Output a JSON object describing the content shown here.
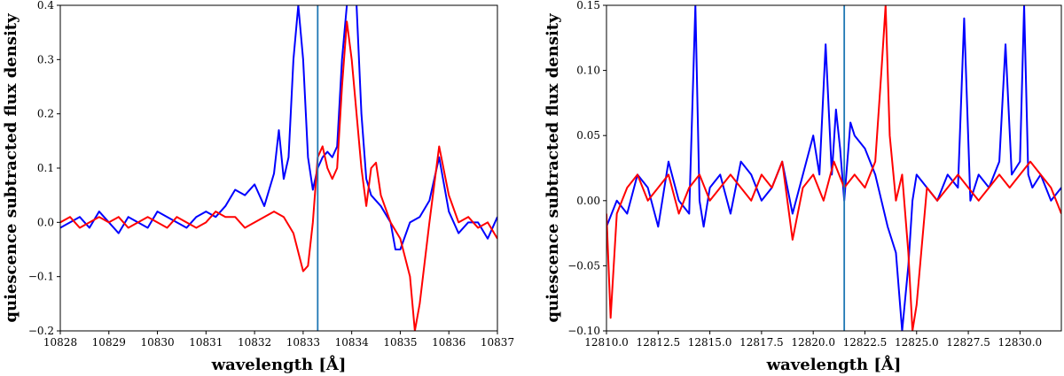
{
  "chart_data": [
    {
      "type": "line",
      "title": "",
      "xlabel": "wavelength [Å]",
      "ylabel": "quiescence subtracted flux density",
      "xlim": [
        10828,
        10837
      ],
      "ylim": [
        -0.2,
        0.4
      ],
      "xticks": [
        10828,
        10829,
        10830,
        10831,
        10832,
        10833,
        10834,
        10835,
        10836,
        10837
      ],
      "xtick_labels": [
        "10828",
        "10829",
        "10830",
        "10831",
        "10832",
        "10833",
        "10834",
        "10835",
        "10836",
        "10837"
      ],
      "yticks": [
        -0.2,
        -0.1,
        0.0,
        0.1,
        0.2,
        0.3,
        0.4
      ],
      "ytick_labels": [
        "−0.2",
        "−0.1",
        "0.0",
        "0.1",
        "0.2",
        "0.3",
        "0.4"
      ],
      "grid": false,
      "vline": {
        "x": 10833.3,
        "color": "#1f77b4"
      },
      "series": [
        {
          "color": "#0000ff",
          "x": [
            10828.0,
            10828.2,
            10828.4,
            10828.6,
            10828.8,
            10829.0,
            10829.2,
            10829.4,
            10829.6,
            10829.8,
            10830.0,
            10830.2,
            10830.4,
            10830.6,
            10830.8,
            10831.0,
            10831.2,
            10831.4,
            10831.6,
            10831.8,
            10832.0,
            10832.2,
            10832.4,
            10832.5,
            10832.6,
            10832.7,
            10832.8,
            10832.9,
            10833.0,
            10833.1,
            10833.2,
            10833.3,
            10833.4,
            10833.5,
            10833.6,
            10833.7,
            10833.8,
            10833.9,
            10834.0,
            10834.1,
            10834.2,
            10834.3,
            10834.4,
            10834.6,
            10834.8,
            10834.9,
            10835.0,
            10835.2,
            10835.4,
            10835.6,
            10835.8,
            10836.0,
            10836.2,
            10836.4,
            10836.6,
            10836.8,
            10837.0
          ],
          "y": [
            -0.01,
            0.0,
            0.01,
            -0.01,
            0.02,
            0.0,
            -0.02,
            0.01,
            0.0,
            -0.01,
            0.02,
            0.01,
            0.0,
            -0.01,
            0.01,
            0.02,
            0.01,
            0.03,
            0.06,
            0.05,
            0.07,
            0.03,
            0.09,
            0.17,
            0.08,
            0.12,
            0.3,
            0.4,
            0.3,
            0.12,
            0.06,
            0.1,
            0.12,
            0.13,
            0.12,
            0.14,
            0.3,
            0.4,
            0.42,
            0.4,
            0.2,
            0.08,
            0.05,
            0.03,
            0.0,
            -0.05,
            -0.05,
            0.0,
            0.01,
            0.04,
            0.12,
            0.02,
            -0.02,
            0.0,
            0.0,
            -0.03,
            0.01
          ]
        },
        {
          "color": "#ff0000",
          "x": [
            10828.0,
            10828.2,
            10828.4,
            10828.6,
            10828.8,
            10829.0,
            10829.2,
            10829.4,
            10829.6,
            10829.8,
            10830.0,
            10830.2,
            10830.4,
            10830.6,
            10830.8,
            10831.0,
            10831.2,
            10831.4,
            10831.6,
            10831.8,
            10832.0,
            10832.2,
            10832.4,
            10832.6,
            10832.8,
            10833.0,
            10833.1,
            10833.2,
            10833.3,
            10833.4,
            10833.5,
            10833.6,
            10833.7,
            10833.8,
            10833.9,
            10834.0,
            10834.1,
            10834.2,
            10834.3,
            10834.4,
            10834.5,
            10834.6,
            10834.8,
            10835.0,
            10835.2,
            10835.3,
            10835.4,
            10835.6,
            10835.8,
            10836.0,
            10836.2,
            10836.4,
            10836.6,
            10836.8,
            10837.0
          ],
          "y": [
            0.0,
            0.01,
            -0.01,
            0.0,
            0.01,
            0.0,
            0.01,
            -0.01,
            0.0,
            0.01,
            0.0,
            -0.01,
            0.01,
            0.0,
            -0.01,
            0.0,
            0.02,
            0.01,
            0.01,
            -0.01,
            0.0,
            0.01,
            0.02,
            0.01,
            -0.02,
            -0.09,
            -0.08,
            0.0,
            0.12,
            0.14,
            0.1,
            0.08,
            0.1,
            0.25,
            0.37,
            0.3,
            0.2,
            0.1,
            0.03,
            0.1,
            0.11,
            0.05,
            0.0,
            -0.03,
            -0.1,
            -0.2,
            -0.15,
            0.0,
            0.14,
            0.05,
            0.0,
            0.01,
            -0.01,
            0.0,
            -0.03
          ]
        }
      ]
    },
    {
      "type": "line",
      "title": "",
      "xlabel": "wavelength [Å]",
      "ylabel": "quiescence subtracted flux density",
      "xlim": [
        12810.0,
        12832.0
      ],
      "ylim": [
        -0.1,
        0.15
      ],
      "xticks": [
        12810.0,
        12812.5,
        12815.0,
        12817.5,
        12820.0,
        12822.5,
        12825.0,
        12827.5,
        12830.0
      ],
      "xtick_labels": [
        "12810.0",
        "12812.5",
        "12815.0",
        "12817.5",
        "12820.0",
        "12822.5",
        "12825.0",
        "12827.5",
        "12830.0"
      ],
      "yticks": [
        -0.1,
        -0.05,
        0.0,
        0.05,
        0.1,
        0.15
      ],
      "ytick_labels": [
        "−0.10",
        "−0.05",
        "0.00",
        "0.05",
        "0.10",
        "0.15"
      ],
      "grid": false,
      "vline": {
        "x": 12821.5,
        "color": "#1f77b4"
      },
      "series": [
        {
          "color": "#0000ff",
          "x": [
            12810.0,
            12810.5,
            12811.0,
            12811.5,
            12812.0,
            12812.5,
            12813.0,
            12813.5,
            12814.0,
            12814.3,
            12814.5,
            12814.7,
            12815.0,
            12815.5,
            12816.0,
            12816.5,
            12817.0,
            12817.5,
            12818.0,
            12818.5,
            12819.0,
            12819.5,
            12820.0,
            12820.3,
            12820.6,
            12820.9,
            12821.1,
            12821.3,
            12821.5,
            12821.8,
            12822.0,
            12822.5,
            12823.0,
            12823.3,
            12823.6,
            12824.0,
            12824.3,
            12824.6,
            12824.8,
            12825.0,
            12825.5,
            12826.0,
            12826.5,
            12827.0,
            12827.3,
            12827.6,
            12828.0,
            12828.5,
            12829.0,
            12829.3,
            12829.6,
            12830.0,
            12830.2,
            12830.4,
            12830.6,
            12831.0,
            12831.5,
            12832.0
          ],
          "y": [
            -0.02,
            0.0,
            -0.01,
            0.02,
            0.01,
            -0.02,
            0.03,
            0.0,
            -0.01,
            0.15,
            0.0,
            -0.02,
            0.01,
            0.02,
            -0.01,
            0.03,
            0.02,
            0.0,
            0.01,
            0.03,
            -0.01,
            0.02,
            0.05,
            0.02,
            0.12,
            0.02,
            0.07,
            0.04,
            0.0,
            0.06,
            0.05,
            0.04,
            0.02,
            0.0,
            -0.02,
            -0.04,
            -0.1,
            -0.05,
            0.0,
            0.02,
            0.01,
            0.0,
            0.02,
            0.01,
            0.14,
            0.0,
            0.02,
            0.01,
            0.03,
            0.12,
            0.02,
            0.03,
            0.15,
            0.02,
            0.01,
            0.02,
            0.0,
            0.01
          ]
        },
        {
          "color": "#ff0000",
          "x": [
            12810.0,
            12810.2,
            12810.5,
            12811.0,
            12811.5,
            12812.0,
            12812.5,
            12813.0,
            12813.5,
            12814.0,
            12814.5,
            12815.0,
            12815.5,
            12816.0,
            12816.5,
            12817.0,
            12817.5,
            12818.0,
            12818.5,
            12819.0,
            12819.5,
            12820.0,
            12820.5,
            12821.0,
            12821.5,
            12822.0,
            12822.5,
            12823.0,
            12823.3,
            12823.5,
            12823.7,
            12824.0,
            12824.3,
            12824.6,
            12824.8,
            12825.0,
            12825.5,
            12826.0,
            12826.5,
            12827.0,
            12827.5,
            12828.0,
            12828.5,
            12829.0,
            12829.5,
            12830.0,
            12830.5,
            12831.0,
            12831.5,
            12832.0
          ],
          "y": [
            -0.01,
            -0.09,
            -0.01,
            0.01,
            0.02,
            0.0,
            0.01,
            0.02,
            -0.01,
            0.01,
            0.02,
            0.0,
            0.01,
            0.02,
            0.01,
            0.0,
            0.02,
            0.01,
            0.03,
            -0.03,
            0.01,
            0.02,
            0.0,
            0.03,
            0.01,
            0.02,
            0.01,
            0.03,
            0.1,
            0.15,
            0.05,
            0.0,
            0.02,
            -0.04,
            -0.1,
            -0.08,
            0.01,
            0.0,
            0.01,
            0.02,
            0.01,
            0.0,
            0.01,
            0.02,
            0.01,
            0.02,
            0.03,
            0.02,
            0.01,
            -0.01
          ]
        }
      ]
    }
  ]
}
